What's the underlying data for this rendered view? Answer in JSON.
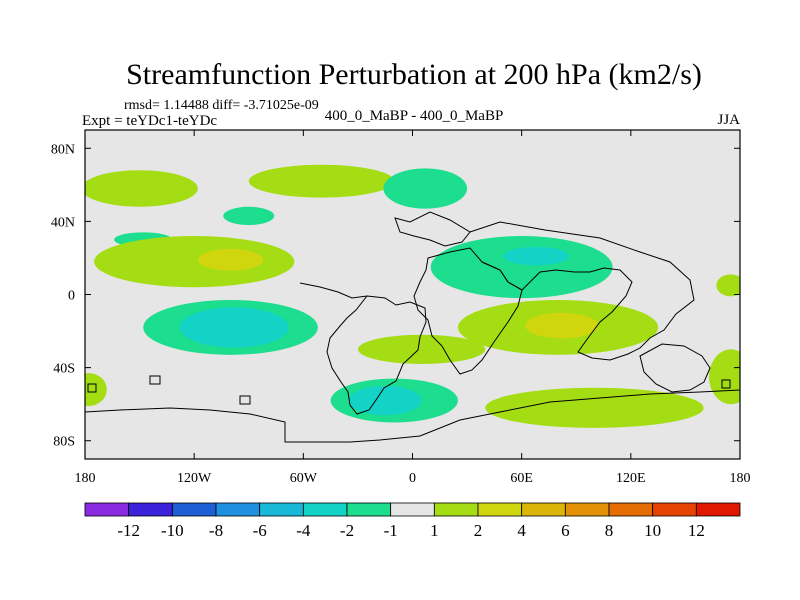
{
  "chart_data": {
    "type": "heatmap",
    "title": "Streamfunction Perturbation at 200 hPa (km2/s)",
    "stats_text": "rmsd= 1.14488 diff= -3.71025e-09",
    "expt_text": "Expt = teYDc1-teYDc",
    "subtitle": "400_0_MaBP - 400_0_MaBP",
    "season": "JJA",
    "x_range": [
      -180,
      180
    ],
    "y_range": [
      -90,
      90
    ],
    "x_ticks": [
      {
        "value": -180,
        "label": "180"
      },
      {
        "value": -120,
        "label": "120W"
      },
      {
        "value": -60,
        "label": "60W"
      },
      {
        "value": 0,
        "label": "0"
      },
      {
        "value": 60,
        "label": "60E"
      },
      {
        "value": 120,
        "label": "120E"
      },
      {
        "value": 180,
        "label": "180"
      }
    ],
    "y_ticks": [
      {
        "value": 80,
        "label": "80N"
      },
      {
        "value": 40,
        "label": "40N"
      },
      {
        "value": 0,
        "label": "0"
      },
      {
        "value": -40,
        "label": "40S"
      },
      {
        "value": -80,
        "label": "80S"
      }
    ],
    "colorbar": {
      "colors": [
        "#8a2be2",
        "#3b21d9",
        "#1f5fd6",
        "#1e90e0",
        "#17b8d8",
        "#12d3c6",
        "#1ddd8f",
        "#e6e6e6",
        "#a5dd14",
        "#cfd60e",
        "#dbb60a",
        "#e39208",
        "#e66c04",
        "#e44302",
        "#e01802"
      ],
      "labels": [
        "-12",
        "-10",
        "-8",
        "-6",
        "-4",
        "-2",
        "-1",
        "1",
        "2",
        "4",
        "6",
        "8",
        "10",
        "12"
      ]
    },
    "anomalies": [
      {
        "lon": -150,
        "lat": 58,
        "rlon": 32,
        "rlat": 10,
        "value": 1.5
      },
      {
        "lon": -50,
        "lat": 62,
        "rlon": 40,
        "rlat": 9,
        "value": 1.5
      },
      {
        "lon": -148,
        "lat": 30,
        "rlon": 16,
        "rlat": 4,
        "value": -1.5
      },
      {
        "lon": -90,
        "lat": 43,
        "rlon": 14,
        "rlat": 5,
        "value": -1.5
      },
      {
        "lon": 7,
        "lat": 58,
        "rlon": 23,
        "rlat": 11,
        "value": -1.5
      },
      {
        "lon": -120,
        "lat": 18,
        "rlon": 55,
        "rlat": 14,
        "value": 1.5
      },
      {
        "lon": -100,
        "lat": 19,
        "rlon": 18,
        "rlat": 6,
        "value": 3.0
      },
      {
        "lon": 60,
        "lat": 15,
        "rlon": 50,
        "rlat": 17,
        "value": -1.5
      },
      {
        "lon": 68,
        "lat": 21,
        "rlon": 18,
        "rlat": 5,
        "value": -2.5
      },
      {
        "lon": -100,
        "lat": -18,
        "rlon": 48,
        "rlat": 15,
        "value": -1.5
      },
      {
        "lon": -98,
        "lat": -18,
        "rlon": 30,
        "rlat": 11,
        "value": -2.5
      },
      {
        "lon": 80,
        "lat": -18,
        "rlon": 55,
        "rlat": 15,
        "value": 1.5
      },
      {
        "lon": 82,
        "lat": -17,
        "rlon": 20,
        "rlat": 7,
        "value": 3.0
      },
      {
        "lon": 5,
        "lat": -30,
        "rlon": 35,
        "rlat": 8,
        "value": 1.5
      },
      {
        "lon": -10,
        "lat": -58,
        "rlon": 35,
        "rlat": 12,
        "value": -1.5
      },
      {
        "lon": -15,
        "lat": -58,
        "rlon": 20,
        "rlat": 8,
        "value": -2.5
      },
      {
        "lon": 100,
        "lat": -62,
        "rlon": 60,
        "rlat": 11,
        "value": 1.5
      },
      {
        "lon": -178,
        "lat": -52,
        "rlon": 10,
        "rlat": 9,
        "value": 1.5
      },
      {
        "lon": 175,
        "lat": -45,
        "rlon": 12,
        "rlat": 15,
        "value": 1.5
      },
      {
        "lon": 175,
        "lat": 5,
        "rlon": 8,
        "rlat": 6,
        "value": 1.5
      }
    ]
  }
}
